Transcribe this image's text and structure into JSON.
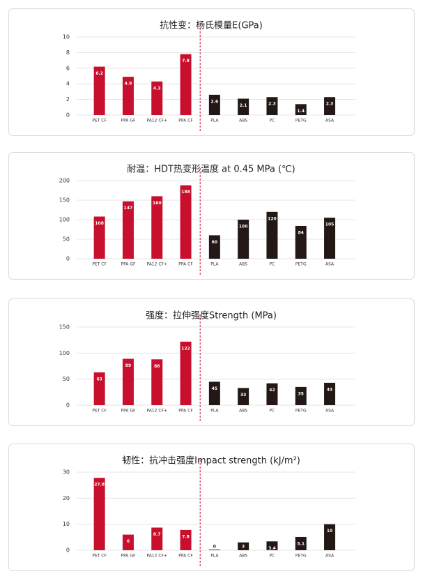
{
  "chart_data": [
    {
      "type": "bar",
      "title": "抗性变：杨氏模量E(GPa)",
      "categories": [
        "PET CF",
        "PPA GF",
        "PA12 CF+",
        "PPA CF",
        "PLA",
        "ABS",
        "PC",
        "PETG",
        "ASA"
      ],
      "values": [
        6.2,
        4.9,
        4.3,
        7.8,
        2.6,
        2.1,
        2.3,
        1.4,
        2.3
      ],
      "colors": [
        "#c8102e",
        "#c8102e",
        "#c8102e",
        "#c8102e",
        "#231815",
        "#231815",
        "#231815",
        "#231815",
        "#231815"
      ],
      "ylim": [
        0,
        10
      ],
      "yticks": [
        0,
        2,
        4,
        6,
        8,
        10
      ],
      "grid": true
    },
    {
      "type": "bar",
      "title": "耐温：HDT热变形温度 at 0.45 MPa (℃)",
      "categories": [
        "PET CF",
        "PPA GF",
        "PA12 CF+",
        "PPA CF",
        "PLA",
        "ABS",
        "PC",
        "PETG",
        "ASA"
      ],
      "values": [
        108,
        147,
        160,
        188,
        60,
        100,
        120,
        84,
        105
      ],
      "colors": [
        "#c8102e",
        "#c8102e",
        "#c8102e",
        "#c8102e",
        "#231815",
        "#231815",
        "#231815",
        "#231815",
        "#231815"
      ],
      "ylim": [
        0,
        200
      ],
      "yticks": [
        0,
        50,
        100,
        150,
        200
      ],
      "grid": true
    },
    {
      "type": "bar",
      "title": "强度：拉伸强度Strength (MPa)",
      "categories": [
        "PET CF",
        "PPA GF",
        "PA12 CF+",
        "PPA CF",
        "PLA",
        "ABS",
        "PC",
        "PETG",
        "ASA"
      ],
      "values": [
        63,
        89,
        88,
        122,
        45,
        33,
        42,
        35,
        43
      ],
      "colors": [
        "#c8102e",
        "#c8102e",
        "#c8102e",
        "#c8102e",
        "#231815",
        "#231815",
        "#231815",
        "#231815",
        "#231815"
      ],
      "ylim": [
        0,
        150
      ],
      "yticks": [
        0,
        50,
        100,
        150
      ],
      "grid": true
    },
    {
      "type": "bar",
      "title": "韧性：抗冲击强度Impact strength (kJ/m²)",
      "categories": [
        "PET CF",
        "PPA GF",
        "PA12 CF+",
        "PPA CF",
        "PLA",
        "ABS",
        "PC",
        "PETG",
        "ASA"
      ],
      "values": [
        27.8,
        6,
        8.7,
        7.8,
        0,
        3,
        3.4,
        5.1,
        10
      ],
      "colors": [
        "#c8102e",
        "#c8102e",
        "#c8102e",
        "#c8102e",
        "#231815",
        "#231815",
        "#231815",
        "#231815",
        "#231815"
      ],
      "ylim": [
        0,
        30
      ],
      "yticks": [
        0,
        10,
        20,
        30
      ],
      "grid": true
    }
  ]
}
